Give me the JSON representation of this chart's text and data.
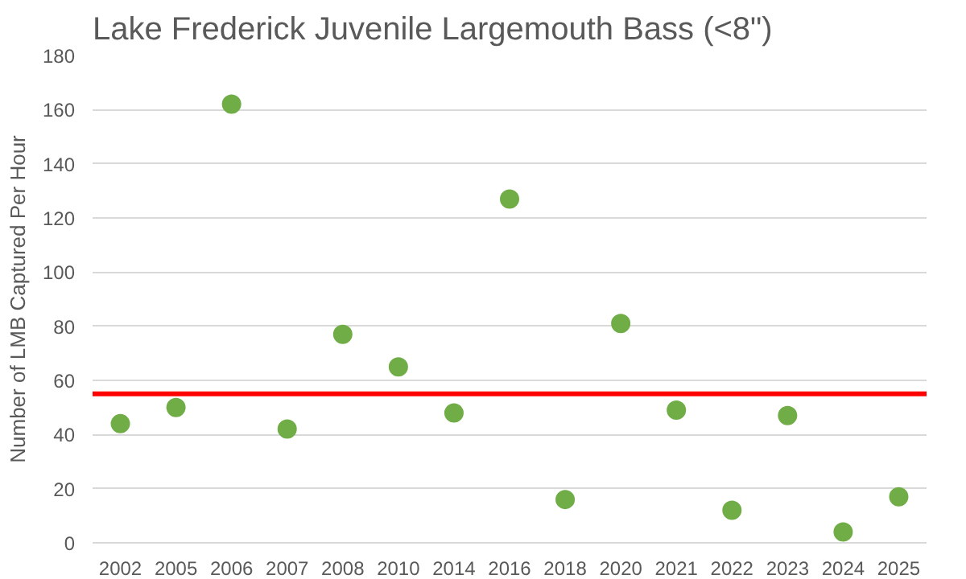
{
  "chart_data": {
    "type": "scatter",
    "title": "Lake Frederick Juvenile Largemouth Bass (<8\")",
    "ylabel": "Number of LMB Captured Per Hour",
    "categories": [
      "2002",
      "2005",
      "2006",
      "2007",
      "2008",
      "2010",
      "2014",
      "2016",
      "2018",
      "2020",
      "2021",
      "2022",
      "2023",
      "2024",
      "2025"
    ],
    "series": [
      {
        "color": "#70ad47",
        "values": [
          44,
          50,
          162,
          42,
          77,
          65,
          48,
          127,
          16,
          81,
          49,
          12,
          47,
          4,
          17
        ]
      }
    ],
    "ylim": [
      0,
      180
    ],
    "yticks": [
      0,
      20,
      40,
      60,
      80,
      100,
      120,
      140,
      160,
      180
    ],
    "grid": "y",
    "marker": "circle",
    "ref_lines": [
      {
        "axis": "y",
        "value": 55,
        "color": "#ff0000"
      }
    ]
  }
}
